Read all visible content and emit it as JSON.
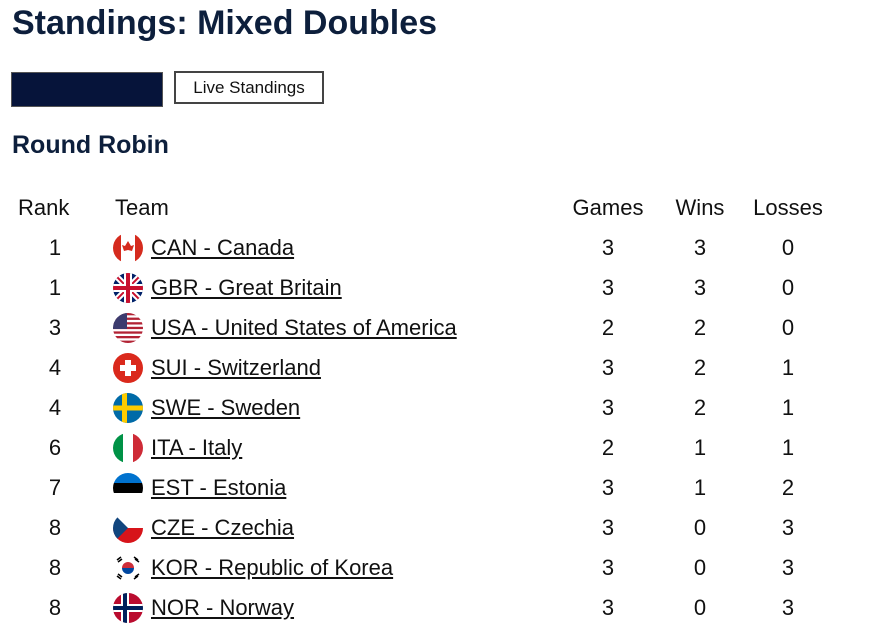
{
  "header": {
    "title": "Standings: Mixed Doubles"
  },
  "buttons": {
    "live": "Live Standings"
  },
  "section": {
    "title": "Round Robin"
  },
  "table": {
    "columns": [
      "Rank",
      "Team",
      "Games",
      "Wins",
      "Losses"
    ],
    "rows": [
      [
        1,
        "CAN - Canada",
        3,
        3,
        0
      ],
      [
        1,
        "GBR - Great Britain",
        3,
        3,
        0
      ],
      [
        3,
        "USA - United States of America",
        2,
        2,
        0
      ],
      [
        4,
        "SUI - Switzerland",
        3,
        2,
        1
      ],
      [
        4,
        "SWE - Sweden",
        3,
        2,
        1
      ],
      [
        6,
        "ITA - Italy",
        2,
        1,
        1
      ],
      [
        7,
        "EST - Estonia",
        3,
        1,
        2
      ],
      [
        8,
        "CZE - Czechia",
        3,
        0,
        3
      ],
      [
        8,
        "KOR - Republic of Korea",
        3,
        0,
        3
      ],
      [
        8,
        "NOR - Norway",
        3,
        0,
        3
      ]
    ]
  }
}
